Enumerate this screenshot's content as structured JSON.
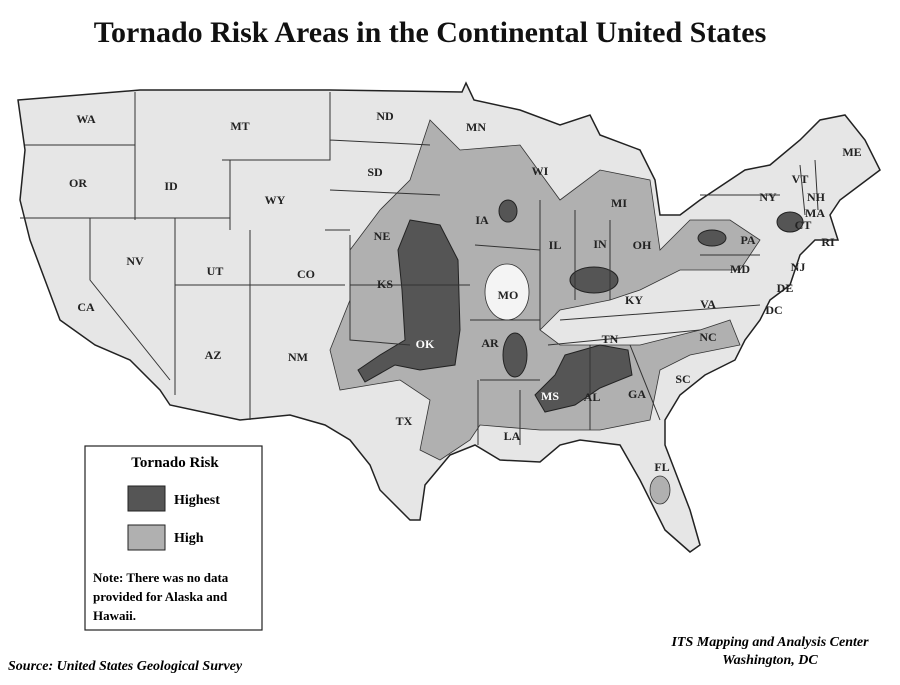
{
  "title": "Tornado Risk Areas in the Continental United States",
  "states": [
    "WA",
    "MT",
    "ND",
    "MN",
    "ME",
    "OR",
    "ID",
    "WY",
    "SD",
    "WI",
    "MI",
    "NY",
    "VT",
    "NH",
    "MA",
    "CT",
    "RI",
    "IA",
    "NE",
    "PA",
    "NJ",
    "NV",
    "UT",
    "CO",
    "KS",
    "IL",
    "IN",
    "OH",
    "MO",
    "KY",
    "MD",
    "DE",
    "DC",
    "VA",
    "CA",
    "AZ",
    "NM",
    "OK",
    "AR",
    "TN",
    "NC",
    "SC",
    "MS",
    "AL",
    "GA",
    "TX",
    "LA",
    "FL"
  ],
  "legend": {
    "title": "Tornado Risk",
    "items": [
      "Highest",
      "High"
    ],
    "note": [
      "Note: There was no data",
      "provided for Alaska and",
      "Hawaii."
    ]
  },
  "source": "Source: United States Geological Survey",
  "credit": [
    "ITS Mapping and Analysis Center",
    "Washington, DC"
  ]
}
